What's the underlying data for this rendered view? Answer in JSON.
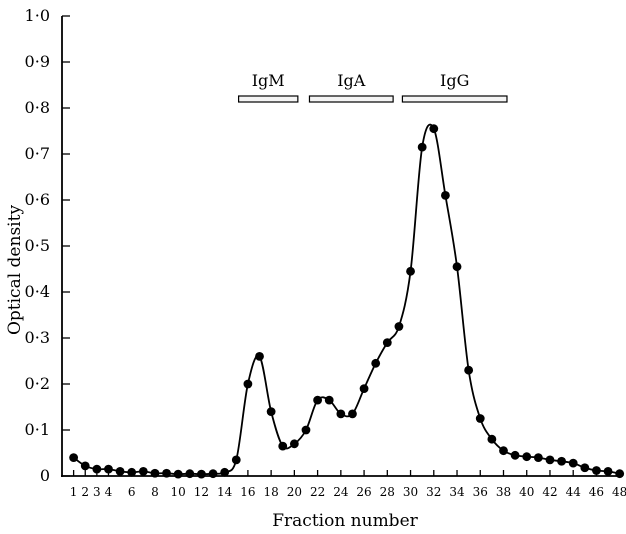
{
  "chart_data": {
    "type": "line",
    "title": "",
    "xlabel": "Fraction number",
    "ylabel": "Optical density",
    "xlim": [
      0,
      48.2
    ],
    "ylim": [
      0,
      1.0
    ],
    "grid": false,
    "yticks": [
      {
        "value": 0,
        "label": "0"
      },
      {
        "value": 0.1,
        "label": "0·1"
      },
      {
        "value": 0.2,
        "label": "0·2"
      },
      {
        "value": 0.3,
        "label": "0·3"
      },
      {
        "value": 0.4,
        "label": "0·4"
      },
      {
        "value": 0.5,
        "label": "0·5"
      },
      {
        "value": 0.6,
        "label": "0·6"
      },
      {
        "value": 0.7,
        "label": "0·7"
      },
      {
        "value": 0.8,
        "label": "0·8"
      },
      {
        "value": 0.9,
        "label": "0·9"
      },
      {
        "value": 1.0,
        "label": "1·0"
      }
    ],
    "xticks": [
      1,
      2,
      3,
      4,
      6,
      8,
      10,
      12,
      14,
      16,
      18,
      20,
      22,
      24,
      26,
      28,
      30,
      32,
      34,
      36,
      38,
      40,
      42,
      44,
      46,
      48
    ],
    "bands": [
      {
        "label": "IgM",
        "start": 15.2,
        "end": 20.3
      },
      {
        "label": "IgA",
        "start": 21.3,
        "end": 28.5
      },
      {
        "label": "IgG",
        "start": 29.3,
        "end": 38.3
      }
    ],
    "series": [
      {
        "x": [
          1,
          2,
          3,
          4,
          5,
          6,
          7,
          8,
          9,
          10,
          11,
          12,
          13,
          14,
          15,
          16,
          17,
          18,
          19,
          20,
          21,
          22,
          23,
          24,
          25,
          26,
          27,
          28,
          29,
          30,
          31,
          32,
          33,
          34,
          35,
          36,
          37,
          38,
          39,
          40,
          41,
          42,
          43,
          44,
          45,
          46,
          47,
          48
        ],
        "y": [
          0.04,
          0.022,
          0.015,
          0.015,
          0.01,
          0.008,
          0.01,
          0.006,
          0.006,
          0.004,
          0.005,
          0.004,
          0.005,
          0.008,
          0.035,
          0.2,
          0.26,
          0.14,
          0.065,
          0.07,
          0.1,
          0.165,
          0.165,
          0.135,
          0.135,
          0.19,
          0.245,
          0.29,
          0.325,
          0.445,
          0.715,
          0.755,
          0.61,
          0.455,
          0.23,
          0.125,
          0.08,
          0.055,
          0.045,
          0.042,
          0.04,
          0.035,
          0.032,
          0.028,
          0.018,
          0.012,
          0.01,
          0.005
        ]
      }
    ]
  }
}
